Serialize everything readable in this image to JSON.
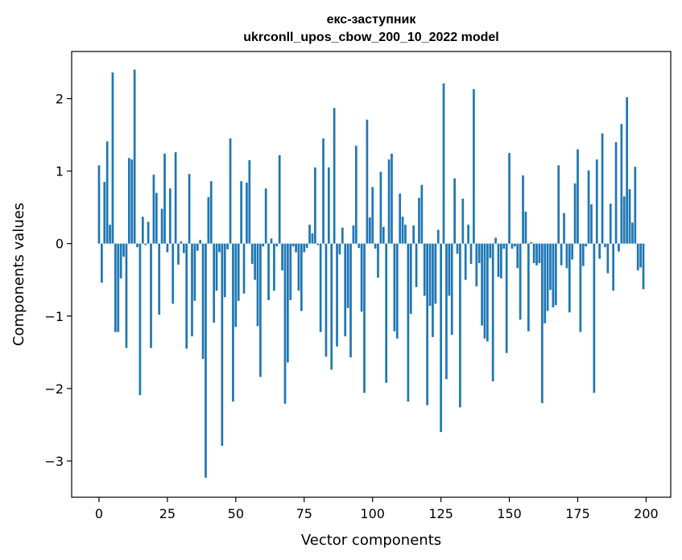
{
  "chart_data": {
    "type": "bar",
    "title_line1": "екс-заступник",
    "title_line2": "ukrconll_upos_cbow_200_10_2022 model",
    "xlabel": "Vector components",
    "ylabel": "Components values",
    "xlim": [
      -10,
      209
    ],
    "ylim": [
      -3.5,
      2.65
    ],
    "x_ticks": [
      0,
      25,
      50,
      75,
      100,
      125,
      150,
      175,
      200
    ],
    "x_tick_labels": [
      "0",
      "25",
      "50",
      "75",
      "100",
      "125",
      "150",
      "175",
      "200"
    ],
    "y_ticks": [
      2,
      1,
      0,
      -1,
      -2,
      -3
    ],
    "y_tick_labels": [
      "2",
      "1",
      "0",
      "−1",
      "−2",
      "−3"
    ],
    "bar_color": "#1f77b4",
    "grid": false,
    "values": [
      1.08,
      -0.54,
      0.85,
      1.41,
      0.26,
      2.36,
      -1.22,
      -1.22,
      -0.48,
      -0.18,
      -1.44,
      1.18,
      1.16,
      2.4,
      -0.05,
      -2.09,
      0.37,
      -0.02,
      0.3,
      -1.44,
      0.95,
      0.7,
      -0.98,
      0.48,
      1.24,
      -0.12,
      0.76,
      -0.83,
      1.26,
      -0.29,
      0.03,
      -0.13,
      -1.45,
      0.96,
      -1.28,
      -0.79,
      -0.1,
      0.05,
      -1.59,
      -3.23,
      0.64,
      0.86,
      -1.09,
      -0.65,
      -0.12,
      -2.79,
      -0.74,
      -0.08,
      1.45,
      -2.18,
      -1.15,
      -0.79,
      0.86,
      -0.69,
      0.84,
      1.15,
      -0.28,
      -0.5,
      -1.14,
      -1.84,
      -0.04,
      0.76,
      -0.78,
      0.07,
      -0.65,
      -0.04,
      1.22,
      -0.37,
      -2.21,
      -1.64,
      -0.78,
      -0.04,
      -0.12,
      -0.65,
      -0.93,
      -0.12,
      -0.06,
      0.26,
      0.14,
      1.05,
      -0.02,
      -1.22,
      1.45,
      -1.56,
      1.05,
      -1.74,
      1.87,
      -1.42,
      -0.15,
      0.22,
      -1.28,
      -0.89,
      -1.57,
      0.25,
      1.35,
      -0.06,
      -0.94,
      -2.06,
      1.71,
      0.36,
      0.78,
      -0.07,
      -0.47,
      0.99,
      0.23,
      -1.92,
      1.16,
      1.24,
      -1.21,
      -1.31,
      0.69,
      0.37,
      0.26,
      -2.18,
      -0.97,
      0.25,
      -0.6,
      0.63,
      0.81,
      -0.72,
      -2.23,
      -0.86,
      -1.29,
      -0.83,
      0.19,
      -2.6,
      2.21,
      -1.87,
      -0.72,
      -1.26,
      0.9,
      -0.14,
      -2.26,
      0.62,
      -0.5,
      0.26,
      -0.28,
      2.13,
      -0.59,
      -0.27,
      -1.13,
      -1.31,
      -1.35,
      -0.2,
      -1.9,
      0.08,
      -0.46,
      -0.48,
      -0.07,
      -1.51,
      1.25,
      -0.07,
      -0.04,
      -0.34,
      -1.05,
      0.94,
      0.44,
      -1.21,
      0.02,
      -0.27,
      -0.3,
      -0.27,
      -2.2,
      -1.1,
      -0.93,
      -0.64,
      -0.88,
      -0.85,
      1.08,
      -0.3,
      0.42,
      -0.34,
      -0.95,
      -0.22,
      0.83,
      1.3,
      -1.22,
      -0.31,
      -0.04,
      1.01,
      0.54,
      -2.06,
      1.16,
      -0.21,
      1.52,
      -0.05,
      -0.41,
      0.55,
      -0.65,
      1.4,
      -0.11,
      1.65,
      0.65,
      2.02,
      0.75,
      0.29,
      1.06,
      -0.37,
      -0.33,
      -0.63
    ]
  }
}
